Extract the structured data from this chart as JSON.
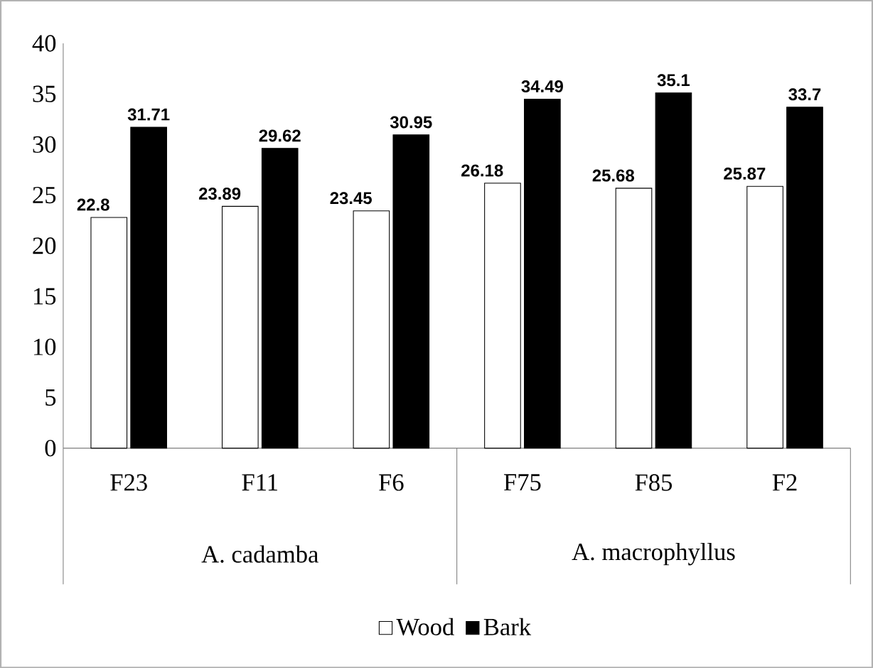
{
  "chart_data": {
    "type": "bar",
    "categories": [
      "F23",
      "F11",
      "F6",
      "F75",
      "F85",
      "F2"
    ],
    "annotations": [
      "A. cadamba",
      "A. macrophyllus"
    ],
    "series": [
      {
        "name": "Wood",
        "color": "#ffffff",
        "values": [
          22.8,
          23.89,
          23.45,
          26.18,
          25.68,
          25.87
        ]
      },
      {
        "name": "Bark",
        "color": "#000000",
        "values": [
          31.71,
          29.62,
          30.95,
          34.49,
          35.1,
          33.7
        ]
      }
    ],
    "ylim": [
      0,
      40
    ],
    "yticks": [
      0,
      5,
      10,
      15,
      20,
      25,
      30,
      35,
      40
    ],
    "data_labels": true,
    "grid": false,
    "legend": "bottom"
  }
}
